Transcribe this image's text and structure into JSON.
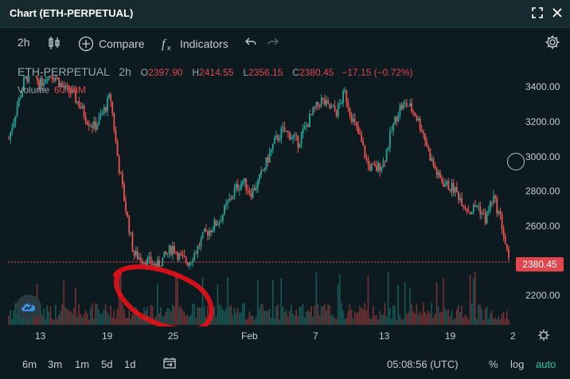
{
  "window": {
    "title": "Chart (ETH-PERPETUAL)"
  },
  "toolbar": {
    "interval": "2h",
    "compare_label": "Compare",
    "indicators_label": "Indicators"
  },
  "legend": {
    "symbol": "ETH-PERPETUAL",
    "timeframe": "2h",
    "open_label": "O",
    "open": "2397.90",
    "high_label": "H",
    "high": "2414.55",
    "low_label": "L",
    "low": "2356.15",
    "close_label": "C",
    "close": "2380.45",
    "change": "−17.15 (−0.72%)"
  },
  "volume": {
    "label": "Volume",
    "value": "60.98M"
  },
  "y_axis": [
    "3400.00",
    "3200.00",
    "3000.00",
    "2800.00",
    "2600.00",
    "2200.00"
  ],
  "x_axis": [
    "13",
    "19",
    "25",
    "Feb",
    "7",
    "13",
    "19",
    "2"
  ],
  "last_price": "2380.45",
  "bottombar": {
    "ranges": [
      "6m",
      "3m",
      "1m",
      "5d",
      "1d"
    ],
    "clock": "05:08:56 (UTC)",
    "percent": "%",
    "log": "log",
    "auto": "auto"
  },
  "colors": {
    "up": "#26a69a",
    "down": "#ef5350",
    "accent": "#27c4a7",
    "annotation": "#e8101a"
  },
  "chart_data": {
    "type": "candlestick",
    "series": [
      {
        "name": "ETH-PERPETUAL",
        "values": [
          3020,
          3180,
          3320,
          3380,
          3300,
          3360,
          3340,
          3280,
          3260,
          3200,
          3120,
          3080,
          3150,
          3240,
          2900,
          2650,
          2420,
          2400,
          2380,
          2360,
          2410,
          2460,
          2400,
          2380,
          2440,
          2520,
          2560,
          2600,
          2680,
          2760,
          2800,
          2740,
          2800,
          2900,
          3000,
          3060,
          3040,
          3000,
          3080,
          3160,
          3220,
          3180,
          3160,
          3260,
          3120,
          3020,
          2880,
          2860,
          2900,
          3060,
          3180,
          3200,
          3150,
          3060,
          2920,
          2820,
          2780,
          2760,
          2700,
          2640,
          2680,
          2600,
          2720,
          2600,
          2380
        ]
      }
    ],
    "x_ticks": [
      "13",
      "19",
      "25",
      "Feb",
      "7",
      "13",
      "19",
      "2"
    ],
    "ylim": [
      2150,
      3450
    ],
    "volume_label": "Volume",
    "last_price": 2380.45
  }
}
